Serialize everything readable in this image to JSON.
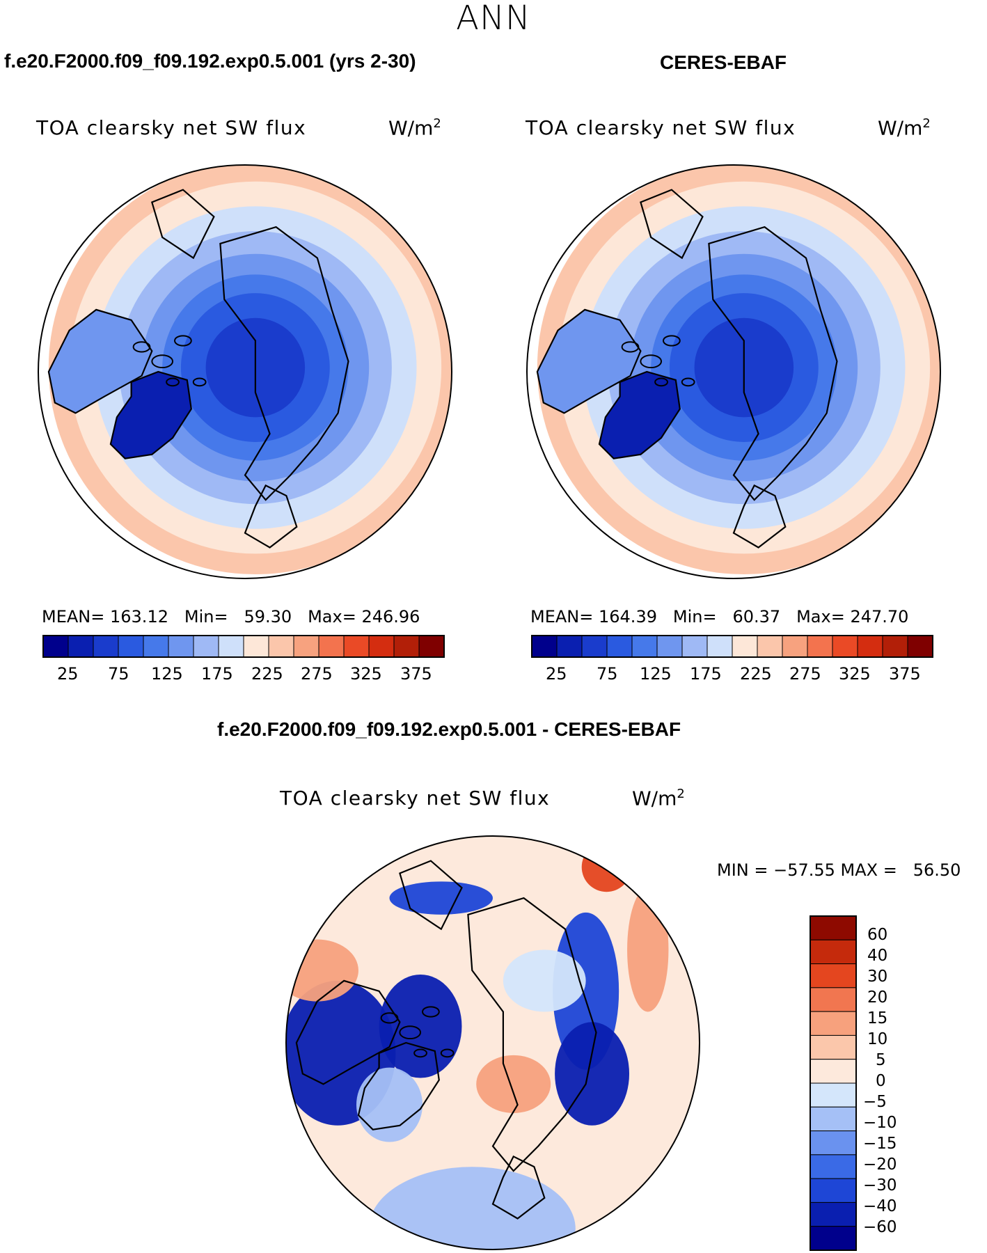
{
  "season": "ANN",
  "colors": {
    "abs_scale": [
      "#00008c",
      "#0a1fb0",
      "#1a3ccc",
      "#2a5ae0",
      "#4679ea",
      "#6f96ef",
      "#9fb9f5",
      "#cfe0fa",
      "#fde7d8",
      "#fbc6ab",
      "#f7a27f",
      "#f3734e",
      "#ea4a26",
      "#d42d10",
      "#b21f08",
      "#7f0000"
    ],
    "diff_scale": [
      "#00008c",
      "#0a1fb0",
      "#1e46d6",
      "#3a6ae6",
      "#6a92ef",
      "#a5c0f6",
      "#d4e6fb",
      "#fde9dc",
      "#fbc7ab",
      "#f7a17d",
      "#f17650",
      "#e4461f",
      "#c52a0c",
      "#8e0a00"
    ]
  },
  "panels": [
    {
      "title": "f.e20.F2000.f09_f09.192.exp0.5.001 (yrs 2-30)",
      "variable": "TOA clearsky net SW flux",
      "units": "W/m",
      "units_sup": "2",
      "stats": {
        "mean_label": "MEAN=",
        "mean": "163.12",
        "min_label": "Min=",
        "min": "59.30",
        "max_label": "Max=",
        "max": "246.96"
      },
      "colorbar_labels": [
        "25",
        "75",
        "125",
        "175",
        "225",
        "275",
        "325",
        "375"
      ]
    },
    {
      "title": "CERES-EBAF",
      "variable": "TOA clearsky net SW flux",
      "units": "W/m",
      "units_sup": "2",
      "stats": {
        "mean_label": "MEAN=",
        "mean": "164.39",
        "min_label": "Min=",
        "min": "60.37",
        "max_label": "Max=",
        "max": "247.70"
      },
      "colorbar_labels": [
        "25",
        "75",
        "125",
        "175",
        "225",
        "275",
        "325",
        "375"
      ]
    }
  ],
  "difference": {
    "title": "f.e20.F2000.f09_f09.192.exp0.5.001 - CERES-EBAF",
    "variable": "TOA clearsky net SW flux",
    "units": "W/m",
    "units_sup": "2",
    "minmax": "MIN = −57.55 MAX =   56.50",
    "colorbar_labels": [
      "60",
      "40",
      "30",
      "20",
      "15",
      "10",
      "5",
      "0",
      "−5",
      "−10",
      "−15",
      "−20",
      "−30",
      "−40",
      "−60"
    ]
  }
}
